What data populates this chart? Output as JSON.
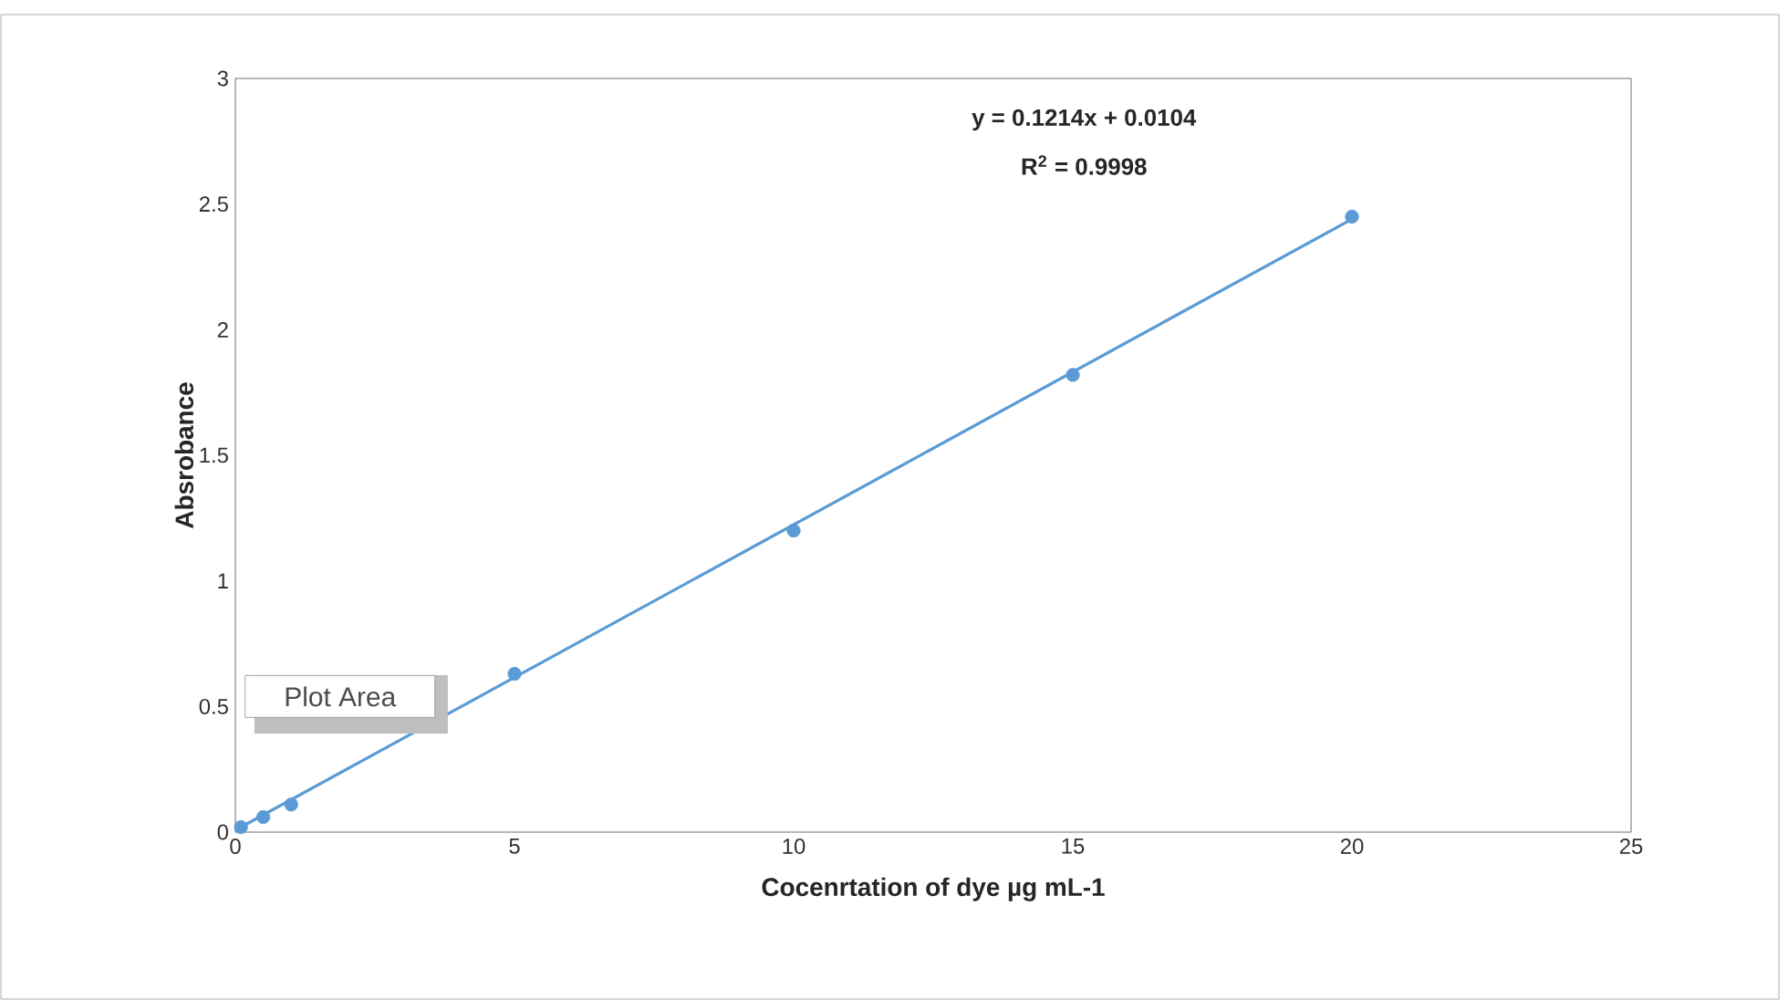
{
  "chart_data": {
    "type": "scatter",
    "xlabel": "Cocenrtation of dye µg mL-1",
    "ylabel": "Absrobance",
    "xlim": [
      0,
      25
    ],
    "ylim": [
      0,
      3
    ],
    "xticks": [
      0,
      5,
      10,
      15,
      20,
      25
    ],
    "yticks": [
      0,
      0.5,
      1,
      1.5,
      2,
      2.5,
      3
    ],
    "grid": false,
    "series": [
      {
        "marker": "circle",
        "color": "#5b9bd5",
        "x": [
          0.1,
          0.5,
          1,
          5,
          10,
          15,
          20
        ],
        "values": [
          0.02,
          0.06,
          0.11,
          0.63,
          1.2,
          1.82,
          2.45
        ]
      },
      {
        "type": "line",
        "marker": "none",
        "color": "#5b9bd5",
        "x": [
          0.1,
          20
        ],
        "values": [
          0.02,
          2.44
        ]
      }
    ],
    "annotations": [
      "y = 0.1214x + 0.0104",
      "R$^{2}$ = 0.9998",
      "Plot Area"
    ]
  }
}
